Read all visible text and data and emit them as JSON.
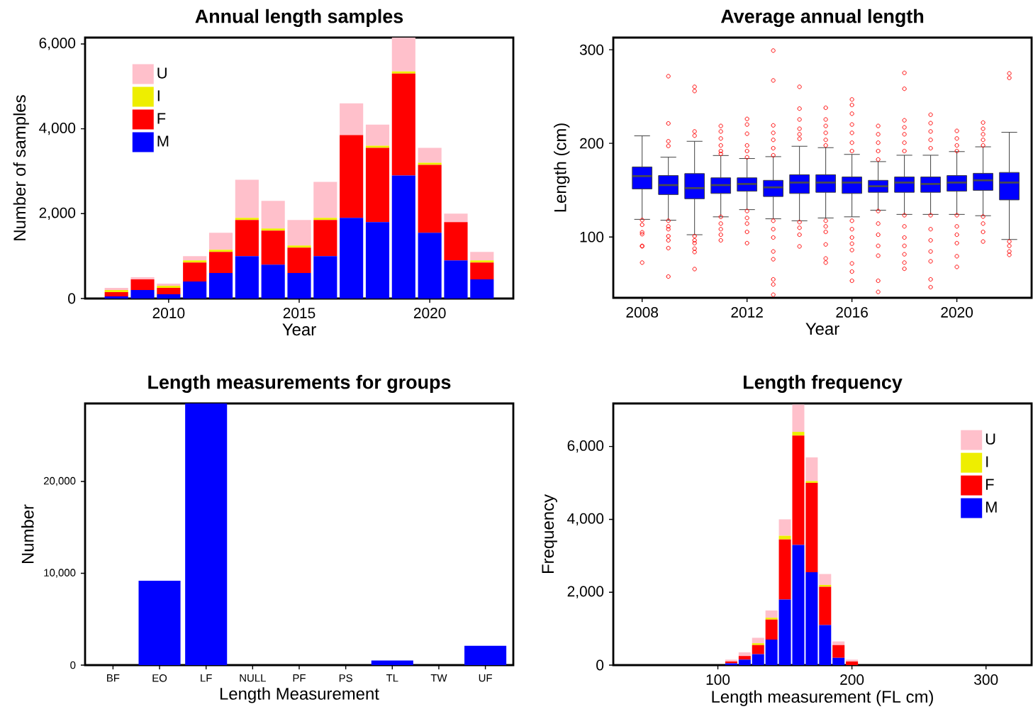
{
  "chart_data": [
    {
      "type": "bar",
      "title": "Annual length samples",
      "xlabel": "Year",
      "ylabel": "Number of samples",
      "stacked": true,
      "legend": "top left",
      "x": [
        2008,
        2009,
        2010,
        2011,
        2012,
        2013,
        2014,
        2015,
        2016,
        2017,
        2018,
        2019,
        2020,
        2021,
        2022
      ],
      "series": [
        {
          "name": "M",
          "color": "#0000ff",
          "values": [
            50,
            200,
            100,
            400,
            600,
            1000,
            800,
            600,
            1000,
            1900,
            1800,
            2900,
            1550,
            900,
            450
          ]
        },
        {
          "name": "F",
          "color": "#ff0000",
          "values": [
            100,
            250,
            150,
            450,
            500,
            850,
            800,
            600,
            850,
            1950,
            1750,
            2400,
            1600,
            900,
            400
          ]
        },
        {
          "name": "I",
          "color": "#eeee00",
          "values": [
            50,
            0,
            50,
            50,
            50,
            50,
            50,
            50,
            50,
            0,
            50,
            50,
            50,
            0,
            50
          ]
        },
        {
          "name": "U",
          "color": "#ffc0cb",
          "values": [
            50,
            50,
            50,
            100,
            400,
            900,
            650,
            600,
            850,
            750,
            500,
            800,
            350,
            200,
            200
          ]
        }
      ],
      "xlim": [
        2006.8,
        2023.2
      ],
      "xticks": [
        2010,
        2015,
        2020
      ],
      "ylim": [
        0,
        6150
      ],
      "yticks": [
        0,
        {
          "value": 2000,
          "label": "2,000"
        },
        {
          "value": 4000,
          "label": "4,000"
        },
        {
          "value": 6000,
          "label": "6,000"
        }
      ]
    },
    {
      "type": "box",
      "title": "Average annual length",
      "xlabel": "Year",
      "ylabel": "Length (cm)",
      "color": "#0000ff",
      "x": [
        2008,
        2009,
        2010,
        2011,
        2012,
        2013,
        2014,
        2015,
        2016,
        2017,
        2018,
        2019,
        2020,
        2021,
        2022
      ],
      "boxes": [
        {
          "low": 118.8,
          "q1": 151.3,
          "median": 165,
          "q3": 174.8,
          "high": 208,
          "outliers": [
            118,
            113,
            105,
            103,
            90.5,
            90,
            72.6
          ]
        },
        {
          "low": 117.9,
          "q1": 145.3,
          "median": 155.4,
          "q3": 165.6,
          "high": 185.2,
          "outliers": [
            271.7,
            221.3,
            202.2,
            197.2,
            117.3,
            111.3,
            108.3,
            100.9,
            96.4,
            88.1,
            57.7
          ]
        },
        {
          "low": 102.4,
          "q1": 140.8,
          "median": 152.2,
          "q3": 167.7,
          "high": 202.2,
          "outliers": [
            260.4,
            255.9,
            212.7,
            208.2,
            100.9,
            96.4,
            93.4,
            87.5,
            83.9,
            65.7
          ]
        },
        {
          "low": 121.5,
          "q1": 146.5,
          "median": 155.4,
          "q3": 163.2,
          "high": 187,
          "outliers": [
            218.6,
            212.7,
            205.2,
            197.8,
            191.8,
            188.8,
            121.5,
            114.3,
            108.3,
            102.4,
            96.4
          ]
        },
        {
          "low": 129.2,
          "q1": 148.9,
          "median": 156.6,
          "q3": 163.2,
          "high": 183.8,
          "outliers": [
            226.1,
            220.1,
            210.3,
            197.8,
            191.8,
            185.2,
            127.7,
            120.3,
            114.3,
            105.4,
            93.4
          ]
        },
        {
          "low": 119.4,
          "q1": 143.2,
          "median": 153,
          "q3": 160.5,
          "high": 185.8,
          "outliers": [
            299.1,
            267.2,
            219.2,
            211.2,
            203.7,
            194.8,
            187.3,
            117.3,
            108.3,
            99.4,
            84.5,
            76.2,
            54.7,
            49.3,
            38.3
          ]
        },
        {
          "low": 117.3,
          "q1": 146.5,
          "median": 158.1,
          "q3": 166.5,
          "high": 196.9,
          "outliers": [
            260.4,
            237.1,
            225.5,
            215.6,
            209.7,
            204.9,
            115.8,
            109.8,
            102.4,
            89.9
          ]
        },
        {
          "low": 120.3,
          "q1": 147.7,
          "median": 158.1,
          "q3": 166.5,
          "high": 195.4,
          "outliers": [
            238,
            225.5,
            218.6,
            211.2,
            203.7,
            197.8,
            117.3,
            111.3,
            105.4,
            92,
            77,
            72.6
          ]
        },
        {
          "low": 121.5,
          "q1": 146.5,
          "median": 158.1,
          "q3": 164.1,
          "high": 188.2,
          "outliers": [
            246.9,
            241,
            231.7,
            220.1,
            211.2,
            200.7,
            191.8,
            117.3,
            108.3,
            99.4,
            92.8,
            86,
            71.7,
            63,
            53.2
          ]
        },
        {
          "low": 128.6,
          "q1": 147.7,
          "median": 154.2,
          "q3": 160.5,
          "high": 180.5,
          "outliers": [
            218.6,
            209.7,
            200.7,
            191.8,
            182.8,
            127.7,
            114.3,
            102.4,
            90.5,
            80,
            53.2,
            41.3
          ]
        },
        {
          "low": 124.1,
          "q1": 147.7,
          "median": 158.1,
          "q3": 164.1,
          "high": 187.3,
          "outliers": [
            275.3,
            258.3,
            224.6,
            217.1,
            209.7,
            200.7,
            191.8,
            123.2,
            111.3,
            99.4,
            90.5,
            81.5,
            72.6,
            66
          ]
        },
        {
          "low": 124.1,
          "q1": 147.7,
          "median": 156.6,
          "q3": 164.1,
          "high": 187.3,
          "outliers": [
            230.6,
            221.6,
            212.7,
            203.7,
            194.8,
            123.2,
            108.3,
            96.4,
            84.5,
            74,
            54.7,
            46.4
          ]
        },
        {
          "low": 124.1,
          "q1": 148.9,
          "median": 158.1,
          "q3": 165.6,
          "high": 191.2,
          "outliers": [
            213.3,
            205.2,
            197.8,
            191.8,
            123.2,
            111.3,
            102.4,
            93.4,
            79.4,
            68
          ]
        },
        {
          "low": 122.7,
          "q1": 149.8,
          "median": 160.5,
          "q3": 168,
          "high": 196.3,
          "outliers": [
            222.2,
            215.6,
            209.7,
            203.7,
            197.8,
            121.8,
            114.3,
            105.4,
            95.1
          ]
        },
        {
          "low": 97.3,
          "q1": 139.6,
          "median": 158.1,
          "q3": 168.9,
          "high": 211.8,
          "outliers": [
            274.7,
            269.9,
            95.1,
            90.5,
            84.5,
            80.9
          ]
        }
      ],
      "xlim": [
        2006.9,
        2022.85
      ],
      "xticks": [
        2008,
        2012,
        2016,
        2020
      ],
      "ylim": [
        35,
        313
      ],
      "yticks": [
        100,
        200,
        300
      ]
    },
    {
      "type": "bar",
      "title": "Length measurements for groups",
      "xlabel": "Length Measurement",
      "ylabel": "Number",
      "color": "#0000ff",
      "categories": [
        "BF",
        "EO",
        "LF",
        "NULL",
        "PF",
        "PS",
        "TL",
        "TW",
        "UF"
      ],
      "values": [
        0,
        9200,
        28500,
        0,
        0,
        0,
        500,
        0,
        2100
      ],
      "ylim": [
        0,
        28500
      ],
      "yticks": [
        0,
        {
          "value": 10000,
          "label": "10,000"
        },
        {
          "value": 20000,
          "label": "20,000"
        }
      ]
    },
    {
      "type": "bar",
      "title": "Length frequency",
      "xlabel": "Length measurement (FL cm)",
      "ylabel": "Frequency",
      "stacked": true,
      "legend": "top right",
      "x": [
        110,
        120,
        130,
        140,
        150,
        160,
        170,
        180,
        190,
        200,
        210
      ],
      "series": [
        {
          "name": "M",
          "color": "#0000ff",
          "values": [
            50,
            150,
            300,
            700,
            1800,
            3300,
            2550,
            1100,
            200,
            0,
            0
          ]
        },
        {
          "name": "F",
          "color": "#ff0000",
          "values": [
            50,
            100,
            250,
            550,
            1650,
            3000,
            2450,
            1050,
            350,
            100,
            0
          ]
        },
        {
          "name": "I",
          "color": "#eeee00",
          "values": [
            0,
            0,
            50,
            50,
            100,
            100,
            50,
            50,
            0,
            0,
            0
          ]
        },
        {
          "name": "U",
          "color": "#ffc0cb",
          "values": [
            50,
            100,
            150,
            200,
            450,
            750,
            650,
            300,
            100,
            50,
            0
          ]
        }
      ],
      "xlim": [
        22,
        334
      ],
      "xticks": [
        100,
        200,
        300
      ],
      "ylim": [
        0,
        7180
      ],
      "yticks": [
        0,
        {
          "value": 2000,
          "label": "2,000"
        },
        {
          "value": 4000,
          "label": "4,000"
        },
        {
          "value": 6000,
          "label": "6,000"
        }
      ]
    }
  ]
}
